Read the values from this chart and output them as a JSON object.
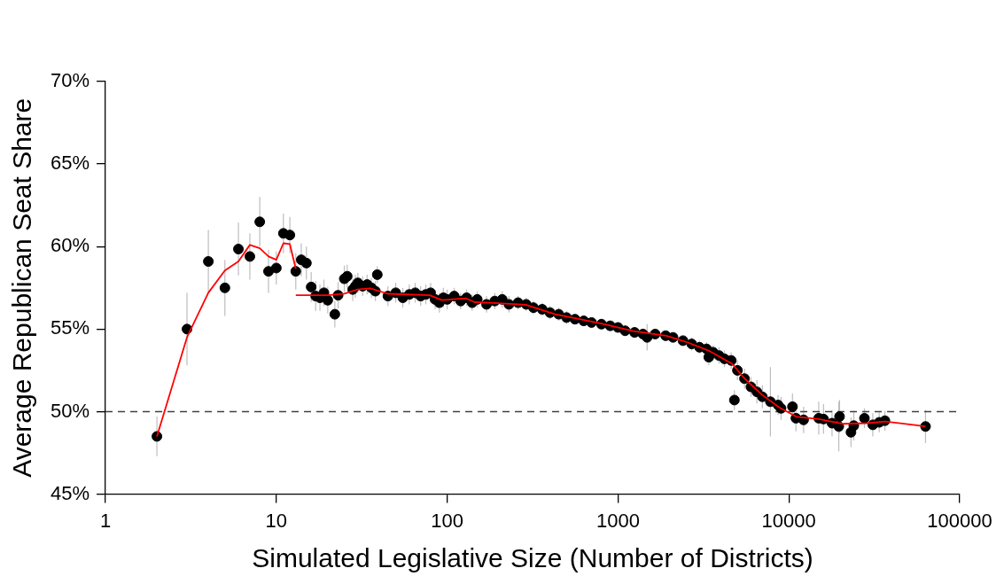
{
  "chart_data": {
    "type": "scatter",
    "xlabel": "Simulated Legislative Size (Number of Districts)",
    "ylabel": "Average Republican Seat Share",
    "log": "x",
    "xlim": [
      1,
      100000
    ],
    "xticks": [
      1,
      10,
      100,
      1000,
      10000,
      100000
    ],
    "ylim": [
      45,
      70
    ],
    "yticks": [
      {
        "value": 45,
        "label": "45%"
      },
      {
        "value": 50,
        "label": "50%"
      },
      {
        "value": 55,
        "label": "55%"
      },
      {
        "value": 60,
        "label": "60%"
      },
      {
        "value": 65,
        "label": "65%"
      },
      {
        "value": 70,
        "label": "70%"
      }
    ],
    "grid": false,
    "legend": false,
    "marker": "circle",
    "ref_lines": [
      {
        "axis": "y",
        "value": 50,
        "color": "#404040",
        "line_style": "dashed"
      }
    ],
    "series": [
      {
        "type": "scatter",
        "color": "#000000",
        "x": [
          2,
          3,
          4,
          5,
          6,
          7,
          8,
          9,
          10,
          11,
          12,
          13,
          14,
          15,
          16,
          17,
          18,
          19,
          20,
          22,
          23,
          25,
          26,
          28,
          29,
          30,
          32,
          34,
          36,
          38,
          39,
          45,
          50,
          55,
          60,
          65,
          70,
          75,
          80,
          85,
          90,
          95,
          100,
          110,
          120,
          130,
          140,
          150,
          170,
          190,
          210,
          230,
          260,
          290,
          320,
          360,
          400,
          450,
          500,
          560,
          630,
          700,
          800,
          900,
          1000,
          1100,
          1250,
          1400,
          1480,
          1650,
          1900,
          2100,
          2400,
          2700,
          3000,
          3300,
          3400,
          3600,
          3900,
          4200,
          4600,
          4800,
          5000,
          5500,
          6000,
          6500,
          7000,
          7800,
          8650,
          9000,
          10500,
          11000,
          12200,
          14960,
          15960,
          17900,
          19600,
          19800,
          23100,
          24000,
          27700,
          31000,
          33800,
          36500,
          63100
        ],
        "values": [
          48.5,
          55.0,
          59.1,
          57.5,
          59.85,
          59.4,
          61.5,
          58.5,
          58.7,
          60.8,
          60.7,
          58.5,
          59.2,
          59.0,
          57.55,
          57.0,
          56.9,
          57.2,
          56.75,
          55.9,
          57.05,
          58.05,
          58.2,
          57.4,
          57.6,
          57.8,
          57.6,
          57.7,
          57.5,
          57.3,
          58.3,
          57.0,
          57.2,
          56.9,
          57.1,
          57.2,
          57.0,
          57.1,
          57.2,
          56.8,
          56.6,
          56.9,
          56.8,
          57.0,
          56.7,
          56.9,
          56.6,
          56.8,
          56.5,
          56.7,
          56.8,
          56.5,
          56.6,
          56.5,
          56.3,
          56.2,
          56.0,
          55.9,
          55.7,
          55.6,
          55.5,
          55.4,
          55.3,
          55.2,
          55.1,
          54.9,
          54.8,
          54.7,
          54.5,
          54.7,
          54.6,
          54.5,
          54.3,
          54.1,
          53.9,
          53.8,
          53.3,
          53.6,
          53.4,
          53.2,
          53.1,
          50.7,
          52.5,
          52.0,
          51.5,
          51.2,
          50.9,
          50.6,
          50.4,
          50.2,
          50.3,
          49.6,
          49.5,
          49.6,
          49.55,
          49.3,
          49.1,
          49.7,
          48.75,
          49.15,
          49.6,
          49.2,
          49.35,
          49.45,
          49.1
        ],
        "errors": [
          1.2,
          2.2,
          1.9,
          1.7,
          1.6,
          1.4,
          1.5,
          1.3,
          1.0,
          1.2,
          1.1,
          1.1,
          1.0,
          1.0,
          0.9,
          0.9,
          0.8,
          0.8,
          0.8,
          0.8,
          0.8,
          0.8,
          0.7,
          0.7,
          0.7,
          0.6,
          0.6,
          0.6,
          0.6,
          0.6,
          0.5,
          0.6,
          0.6,
          0.6,
          0.6,
          0.6,
          0.6,
          0.6,
          0.6,
          0.6,
          0.6,
          0.6,
          0.6,
          0.5,
          0.5,
          0.5,
          0.5,
          0.5,
          0.5,
          0.5,
          0.5,
          0.5,
          0.4,
          0.4,
          0.4,
          0.4,
          0.4,
          0.4,
          0.4,
          0.3,
          0.3,
          0.3,
          0.3,
          0.3,
          0.3,
          0.3,
          0.3,
          0.3,
          0.8,
          0.3,
          0.3,
          0.3,
          0.3,
          0.4,
          0.4,
          0.4,
          0.5,
          0.4,
          0.5,
          0.5,
          0.5,
          0.6,
          0.6,
          0.6,
          0.6,
          0.7,
          0.7,
          2.1,
          0.6,
          0.7,
          0.8,
          0.8,
          0.8,
          1.0,
          0.9,
          0.8,
          1.5,
          1.0,
          0.9,
          0.9,
          0.6,
          0.7,
          0.6,
          0.6,
          1.0
        ]
      },
      {
        "type": "line",
        "color": "#ff0000",
        "marker": "none",
        "x": [
          2,
          3,
          4,
          5,
          6,
          7,
          8,
          9,
          10,
          11,
          12,
          13
        ],
        "values": [
          48.5,
          54.5,
          57.2,
          58.55,
          59.1,
          60.1,
          59.9,
          59.4,
          59.2,
          60.2,
          60.15,
          58.65
        ]
      },
      {
        "type": "line",
        "color": "#ff0000",
        "marker": "none",
        "x": [
          13,
          20,
          25,
          30,
          35.4,
          45,
          79,
          93,
          129,
          145,
          177,
          288,
          429,
          547,
          821,
          1231,
          1914,
          2540,
          3383,
          4654,
          5470,
          6996,
          8830,
          11140,
          14960,
          20800,
          28900,
          36600,
          63100
        ],
        "values": [
          57.05,
          57.05,
          57.15,
          57.4,
          57.47,
          57.14,
          57.05,
          56.76,
          56.86,
          56.63,
          56.6,
          56.48,
          55.9,
          55.68,
          55.31,
          54.88,
          54.6,
          54.2,
          53.7,
          52.9,
          52.04,
          51.0,
          50.24,
          49.68,
          49.55,
          49.26,
          49.3,
          49.4,
          49.11
        ]
      }
    ]
  }
}
